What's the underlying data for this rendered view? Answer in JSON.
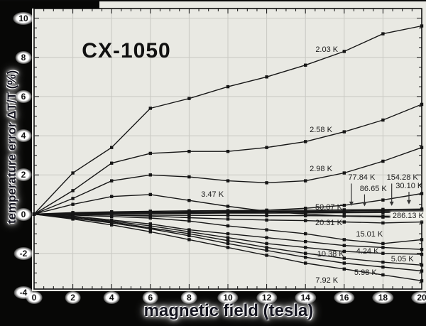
{
  "figure": {
    "title": "CX-1050",
    "x_axis": {
      "label": "magnetic field (tesla)",
      "tick_labels": [
        "0",
        "2",
        "4",
        "6",
        "8",
        "10",
        "12",
        "14",
        "16",
        "18",
        "20"
      ],
      "tick_values": [
        0,
        2,
        4,
        6,
        8,
        10,
        12,
        14,
        16,
        18,
        20
      ]
    },
    "y_axis": {
      "label": "temperature error ΔT/T (%)",
      "tick_labels": [
        "10",
        "8",
        "6",
        "4",
        "2",
        "0",
        "-2",
        "-4"
      ],
      "tick_values": [
        10,
        8,
        6,
        4,
        2,
        0,
        -2,
        -4
      ]
    },
    "colors": {
      "band": "#070706",
      "plot_bg": "#e9e9e3",
      "grid": "#c9c9c3",
      "curve": "#161616",
      "tick_text_halo": "#ffffff"
    }
  },
  "chart_data": {
    "type": "line",
    "title": "CX-1050",
    "xlabel": "magnetic field (tesla)",
    "ylabel": "temperature error ΔT/T (%)",
    "xlim": [
      0,
      20
    ],
    "ylim": [
      -3.9,
      10.5
    ],
    "x_tick_step": 2,
    "y_tick_step": 2,
    "grid": true,
    "legend_position": "inline-curve-labels",
    "x": [
      0,
      2,
      4,
      6,
      8,
      10,
      12,
      14,
      16,
      18,
      20
    ],
    "series": [
      {
        "name": "2.03 K",
        "values": [
          0,
          2.1,
          3.4,
          5.4,
          5.9,
          6.5,
          7.0,
          7.6,
          8.3,
          9.2,
          9.6
        ],
        "label_at": [
          15.1,
          8.4
        ]
      },
      {
        "name": "2.58 K",
        "values": [
          0,
          1.2,
          2.6,
          3.1,
          3.2,
          3.2,
          3.4,
          3.7,
          4.2,
          4.8,
          5.6
        ],
        "label_at": [
          14.8,
          4.3
        ]
      },
      {
        "name": "2.98 K",
        "values": [
          0,
          0.8,
          1.7,
          2.0,
          1.9,
          1.7,
          1.6,
          1.7,
          2.1,
          2.7,
          3.4
        ],
        "label_at": [
          14.8,
          2.3
        ]
      },
      {
        "name": "3.47 K",
        "values": [
          0,
          0.5,
          0.9,
          1.0,
          0.7,
          0.4,
          0.15,
          0.0,
          -0.1,
          -0.15,
          -0.2
        ],
        "label_at": [
          9.2,
          1.0
        ]
      },
      {
        "name": "4.24 K",
        "values": [
          0,
          -0.1,
          -0.3,
          -0.5,
          -0.8,
          -1.0,
          -1.2,
          -1.4,
          -1.6,
          -1.7,
          -1.8
        ],
        "label_at": [
          17.2,
          -1.9
        ]
      },
      {
        "name": "5.05 K",
        "values": [
          0,
          -0.15,
          -0.35,
          -0.6,
          -0.9,
          -1.2,
          -1.5,
          -1.7,
          -1.9,
          -2.0,
          -2.05
        ],
        "label_at": [
          19.0,
          -2.3
        ]
      },
      {
        "name": "5.98 K",
        "values": [
          0,
          -0.2,
          -0.45,
          -0.75,
          -1.1,
          -1.5,
          -1.85,
          -2.2,
          -2.5,
          -2.7,
          -2.9
        ],
        "label_at": [
          17.1,
          -3.0
        ]
      },
      {
        "name": "7.92 K",
        "values": [
          0,
          -0.25,
          -0.55,
          -0.9,
          -1.3,
          -1.7,
          -2.1,
          -2.5,
          -2.8,
          -3.1,
          -3.4
        ],
        "label_at": [
          15.1,
          -3.4
        ]
      },
      {
        "name": "10.38 K",
        "values": [
          0,
          -0.2,
          -0.4,
          -0.7,
          -1.0,
          -1.35,
          -1.7,
          -2.0,
          -2.25,
          -2.45,
          -2.6
        ],
        "label_at": [
          15.3,
          -2.05
        ]
      },
      {
        "name": "15.01 K",
        "values": [
          0,
          -0.05,
          -0.12,
          -0.2,
          -0.35,
          -0.6,
          -0.8,
          -1.0,
          -1.3,
          -1.5,
          -1.3
        ],
        "label_at": [
          17.3,
          -1.05
        ]
      },
      {
        "name": "20.31 K",
        "values": [
          0,
          0.0,
          -0.05,
          -0.1,
          -0.18,
          -0.25,
          -0.3,
          -0.33,
          -0.4,
          -0.45,
          -0.4
        ],
        "label_at": [
          15.2,
          -0.45
        ]
      },
      {
        "name": "30.10 K",
        "values": [
          0,
          0.02,
          0.04,
          0.06,
          0.1,
          0.14,
          0.2,
          0.3,
          0.45,
          0.72,
          1.05
        ],
        "label_at": [
          19.35,
          1.43
        ],
        "arrow_to": [
          19.34,
          0.5
        ]
      },
      {
        "name": "50.07 K",
        "values": [
          0,
          0.08,
          0.12,
          0.15,
          0.17,
          0.18,
          0.2,
          0.2,
          0.22,
          0.24,
          0.26
        ],
        "label_at": [
          15.2,
          0.35
        ]
      },
      {
        "name": "77.84 K",
        "values": [
          0,
          0.05,
          0.08,
          0.1,
          0.12,
          0.13,
          0.14,
          0.15,
          0.17,
          0.19,
          0.21
        ],
        "label_at": [
          16.9,
          1.85
        ],
        "arrow_to": [
          16.37,
          0.42
        ]
      },
      {
        "name": "86.65 K",
        "values": [
          0,
          0.03,
          0.05,
          0.07,
          0.08,
          0.09,
          0.1,
          0.11,
          0.12,
          0.14,
          0.16
        ],
        "label_at": [
          17.5,
          1.3
        ],
        "arrow_to": [
          17.05,
          0.4
        ]
      },
      {
        "name": "154.28 K",
        "values": [
          0,
          0.0,
          0.02,
          0.03,
          0.04,
          0.05,
          0.05,
          0.06,
          0.07,
          0.08,
          0.1
        ],
        "label_at": [
          19.0,
          1.85
        ],
        "arrow_to": [
          18.45,
          0.42
        ]
      },
      {
        "name": "286.13 K",
        "values": [
          0,
          -0.02,
          -0.04,
          -0.05,
          -0.06,
          -0.07,
          -0.08,
          -0.08,
          -0.09,
          -0.1,
          -0.1
        ],
        "label_at": [
          19.3,
          -0.1
        ],
        "boxed": true
      }
    ]
  }
}
